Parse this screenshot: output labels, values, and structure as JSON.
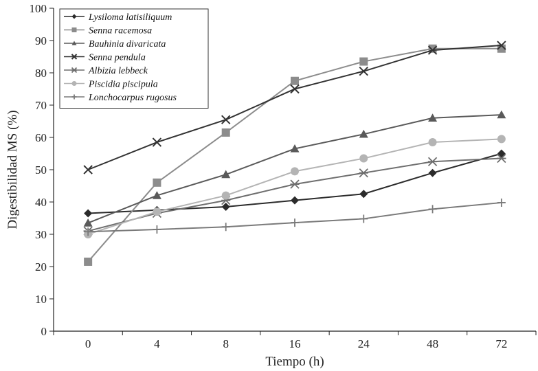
{
  "chart_data": {
    "type": "line",
    "title": "",
    "xlabel": "Tiempo (h)",
    "ylabel": "Digestibilidad MS (%)",
    "ylim": [
      0,
      100
    ],
    "yticks": [
      "0",
      "10",
      "20",
      "30",
      "40",
      "50",
      "60",
      "70",
      "80",
      "90",
      "100"
    ],
    "categories": [
      "0",
      "4",
      "8",
      "16",
      "24",
      "48",
      "72"
    ],
    "legend_position": "top-left",
    "series": [
      {
        "name": "Lysiloma latisiliquum",
        "marker": "diamond",
        "color": "#2b2b2b",
        "values": [
          36.5,
          37.5,
          38.5,
          40.5,
          42.5,
          49,
          55
        ]
      },
      {
        "name": "Senna racemosa",
        "marker": "square",
        "color": "#8c8c8c",
        "values": [
          21.5,
          46,
          61.5,
          77.5,
          83.5,
          87.5,
          87.5
        ]
      },
      {
        "name": "Bauhinia divaricata",
        "marker": "triangle",
        "color": "#5a5a5a",
        "values": [
          33.5,
          42,
          48.5,
          56.5,
          61,
          66,
          67
        ]
      },
      {
        "name": "Senna pendula",
        "marker": "x",
        "color": "#333333",
        "values": [
          50,
          58.5,
          65.5,
          75,
          80.5,
          87,
          88.5
        ]
      },
      {
        "name": "Albizia lebbeck",
        "marker": "asterisk",
        "color": "#6e6e6e",
        "values": [
          31,
          36.5,
          40.5,
          45.5,
          49,
          52.5,
          53.5
        ]
      },
      {
        "name": "Piscidia piscipula",
        "marker": "circle",
        "color": "#b4b4b4",
        "values": [
          30,
          37,
          42,
          49.5,
          53.5,
          58.5,
          59.5
        ]
      },
      {
        "name": "Lonchocarpus rugosus",
        "marker": "plus",
        "color": "#7a7a7a",
        "values": [
          30.8,
          31.5,
          32.3,
          33.6,
          34.8,
          37.8,
          39.8
        ]
      }
    ]
  }
}
